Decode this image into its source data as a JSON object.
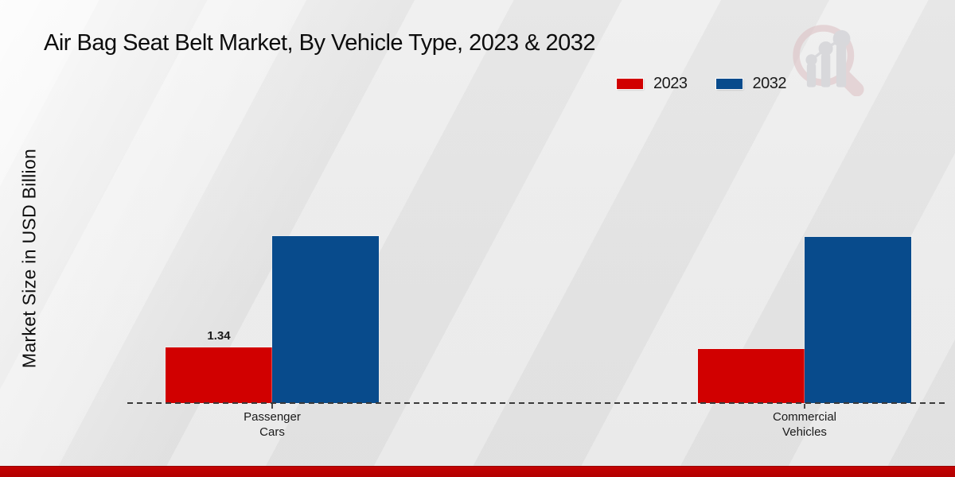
{
  "title": "Air Bag Seat Belt Market, By Vehicle Type, 2023 & 2032",
  "y_axis_label": "Market Size in USD Billion",
  "legend": {
    "items": [
      {
        "label": "2023",
        "color": "#d10000"
      },
      {
        "label": "2032",
        "color": "#084b8c"
      }
    ]
  },
  "colors": {
    "accent_red": "#d10000",
    "accent_blue": "#084b8c",
    "footer_red": "#b20000",
    "background_gray": "#e9e9e9"
  },
  "watermark_icon": "magnifier-bar-chart-logo",
  "chart_data": {
    "type": "bar",
    "title": "Air Bag Seat Belt Market, By Vehicle Type, 2023 & 2032",
    "xlabel": "",
    "ylabel": "Market Size in USD Billion",
    "categories": [
      "Passenger Cars",
      "Commercial Vehicles"
    ],
    "tick_labels": [
      "Passenger\nCars",
      "Commercial\nVehicles"
    ],
    "series": [
      {
        "name": "2023",
        "color": "#d10000",
        "values": [
          1.34,
          1.3
        ],
        "data_labels": [
          "1.34",
          ""
        ]
      },
      {
        "name": "2032",
        "color": "#084b8c",
        "values": [
          4.02,
          4.0
        ],
        "data_labels": [
          "",
          ""
        ]
      }
    ],
    "ylim": [
      0,
      5.5
    ],
    "grid": false,
    "axis_style": "dashed-baseline-only",
    "legend_position": "top-right"
  }
}
